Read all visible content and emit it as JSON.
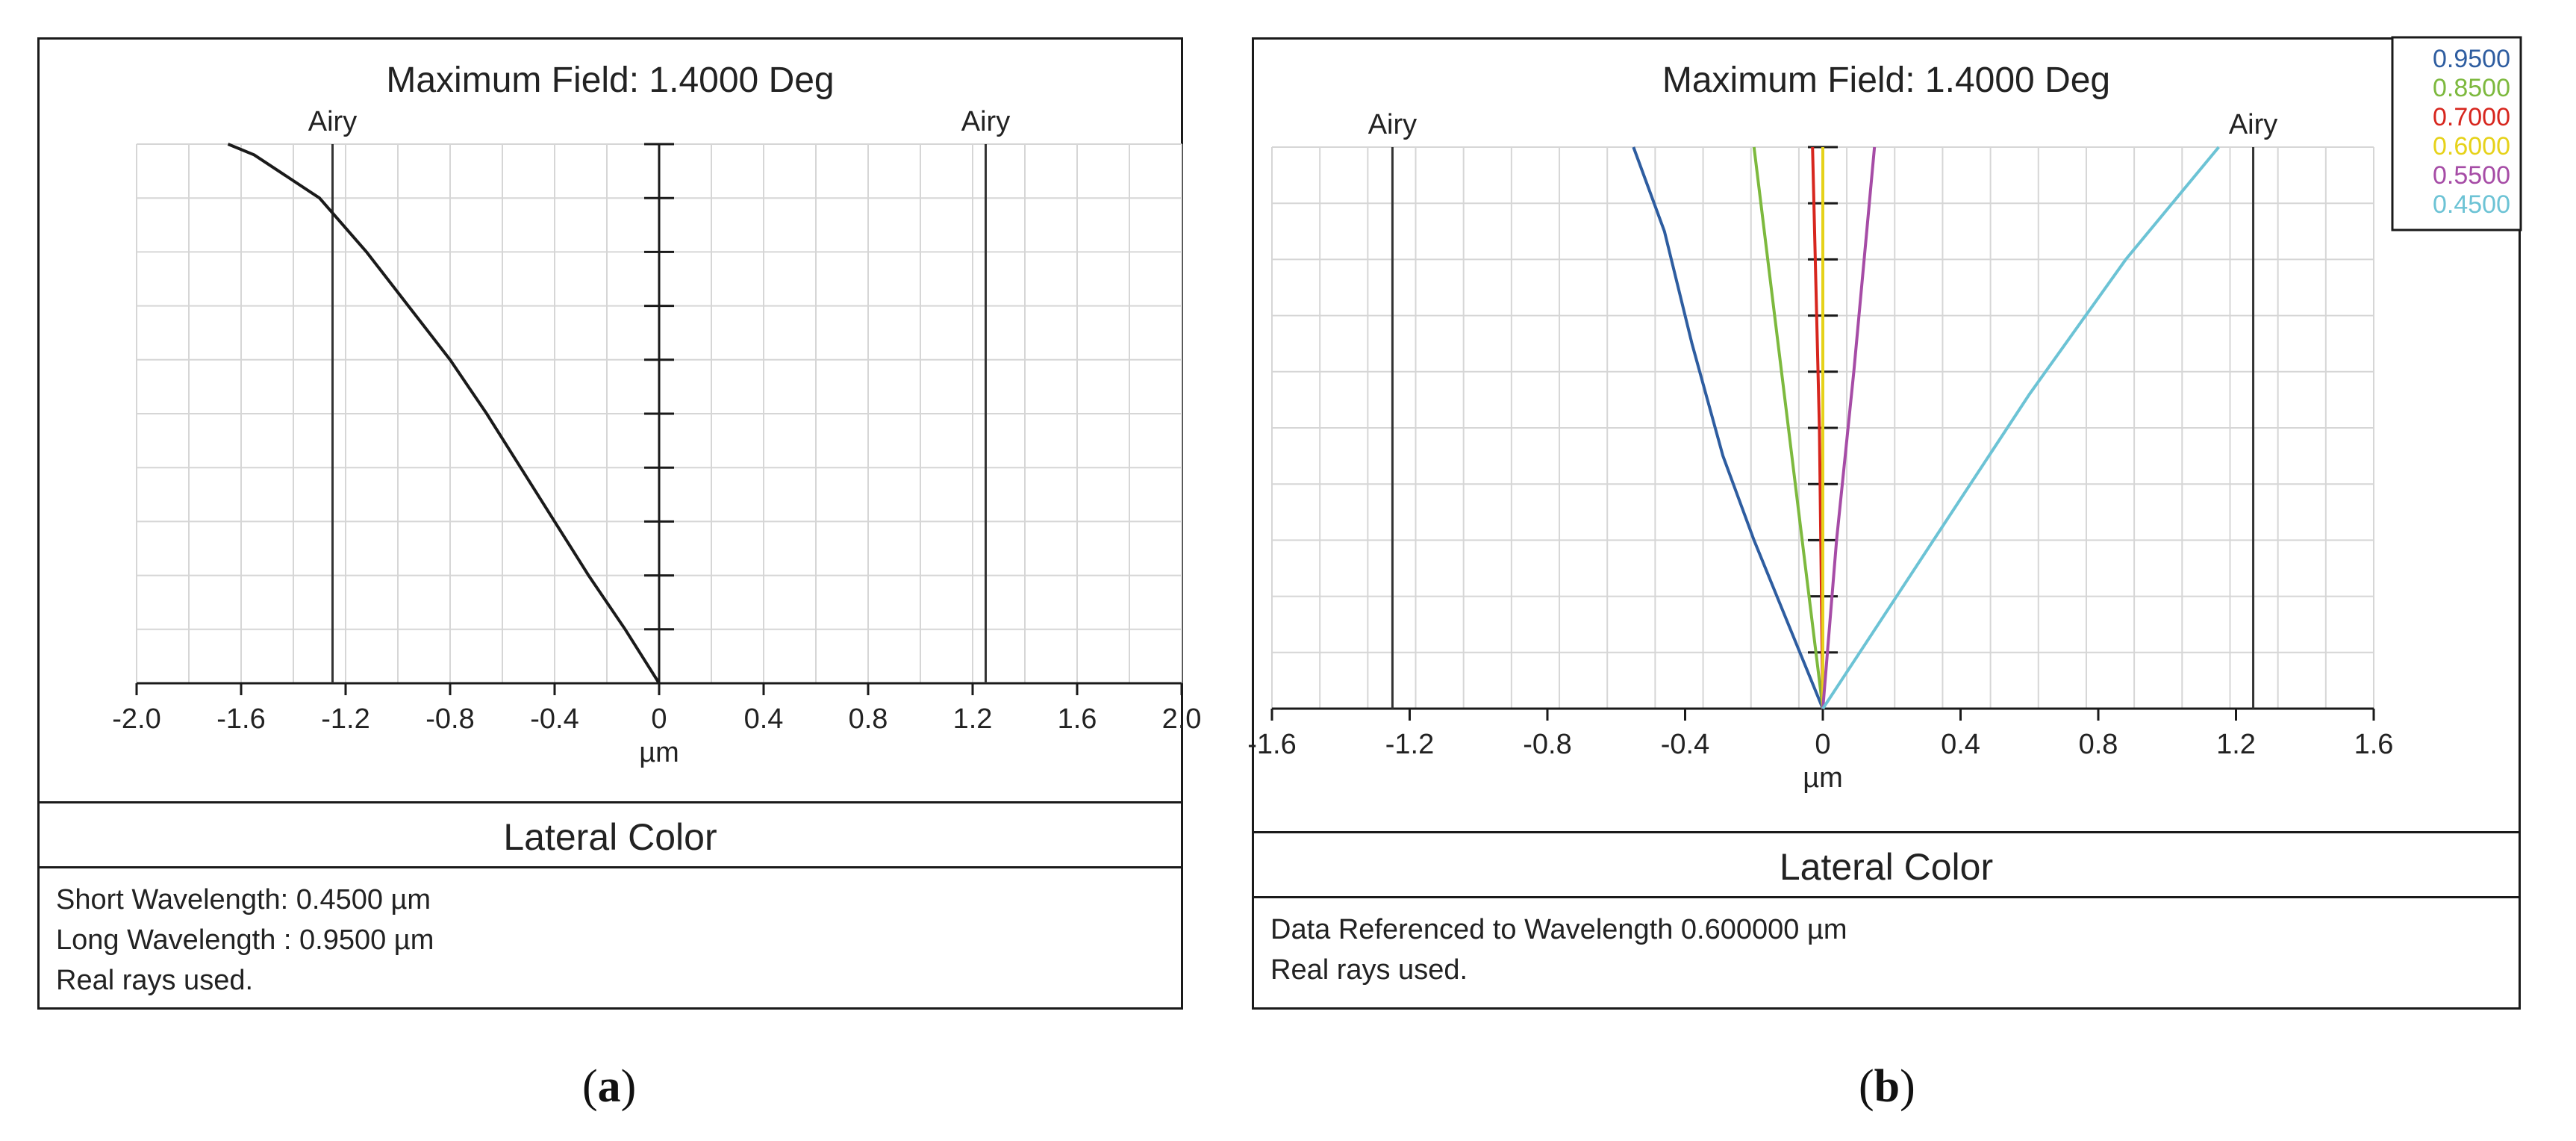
{
  "chart_data": [
    {
      "type": "line",
      "panel_label": "a",
      "title": "Maximum Field: 1.4000 Deg",
      "xlabel": "µm",
      "xlim": [
        -2.0,
        2.0
      ],
      "ylim": [
        0,
        1
      ],
      "x_ticks": [
        "-2.0",
        "-1.6",
        "-1.2",
        "-0.8",
        "-0.4",
        "0",
        "0.4",
        "0.8",
        "1.2",
        "1.6",
        "2.0"
      ],
      "grid": true,
      "airy_lines": [
        {
          "x": -1.25,
          "label": "Airy"
        },
        {
          "x": 1.25,
          "label": "Airy"
        }
      ],
      "series": [
        {
          "name": "lateral color",
          "color": "#1a1a1a",
          "points": [
            [
              0,
              0
            ],
            [
              -0.13,
              0.1
            ],
            [
              -0.27,
              0.2
            ],
            [
              -0.4,
              0.3
            ],
            [
              -0.53,
              0.4
            ],
            [
              -0.66,
              0.5
            ],
            [
              -0.8,
              0.6
            ],
            [
              -0.96,
              0.7
            ],
            [
              -1.12,
              0.8
            ],
            [
              -1.3,
              0.9
            ],
            [
              -1.55,
              0.98
            ],
            [
              -1.65,
              1.0
            ]
          ]
        }
      ],
      "caption_title": "Lateral Color",
      "notes": [
        "Short Wavelength: 0.4500 µm",
        "Long Wavelength : 0.9500 µm",
        "Real rays used."
      ]
    },
    {
      "type": "line",
      "panel_label": "b",
      "title": "Maximum Field: 1.4000 Deg",
      "xlabel": "µm",
      "xlim": [
        -1.6,
        1.6
      ],
      "ylim": [
        0,
        1
      ],
      "x_ticks": [
        "-1.6",
        "-1.2",
        "-0.8",
        "-0.4",
        "0",
        "0.4",
        "0.8",
        "1.2",
        "1.6"
      ],
      "grid": true,
      "airy_lines": [
        {
          "x": -1.25,
          "label": "Airy"
        },
        {
          "x": 1.25,
          "label": "Airy"
        }
      ],
      "legend": {
        "position": "top-right",
        "labels": [
          "0.9500",
          "0.8500",
          "0.7000",
          "0.6000",
          "0.5500",
          "0.4500"
        ]
      },
      "series": [
        {
          "name": "0.9500",
          "color": "#2e5da0",
          "points": [
            [
              0,
              0
            ],
            [
              -0.1,
              0.15
            ],
            [
              -0.2,
              0.3
            ],
            [
              -0.29,
              0.45
            ],
            [
              -0.38,
              0.65
            ],
            [
              -0.46,
              0.85
            ],
            [
              -0.55,
              1.0
            ]
          ]
        },
        {
          "name": "0.8500",
          "color": "#7db93e",
          "points": [
            [
              0,
              0
            ],
            [
              -0.05,
              0.25
            ],
            [
              -0.1,
              0.5
            ],
            [
              -0.15,
              0.75
            ],
            [
              -0.2,
              1.0
            ]
          ]
        },
        {
          "name": "0.7000",
          "color": "#d7261e",
          "points": [
            [
              0,
              0
            ],
            [
              -0.01,
              0.5
            ],
            [
              -0.03,
              1.0
            ]
          ]
        },
        {
          "name": "0.6000",
          "color": "#e6d21a",
          "points": [
            [
              0,
              0
            ],
            [
              0,
              1.0
            ]
          ]
        },
        {
          "name": "0.5500",
          "color": "#a64ca6",
          "points": [
            [
              0,
              0
            ],
            [
              0.04,
              0.3
            ],
            [
              0.09,
              0.6
            ],
            [
              0.15,
              1.0
            ]
          ]
        },
        {
          "name": "0.4500",
          "color": "#6cc3d5",
          "points": [
            [
              0,
              0
            ],
            [
              0.3,
              0.28
            ],
            [
              0.6,
              0.56
            ],
            [
              0.88,
              0.8
            ],
            [
              1.15,
              1.0
            ]
          ]
        }
      ],
      "caption_title": "Lateral Color",
      "notes": [
        "Data Referenced to Wavelength 0.600000 µm",
        "Real rays used."
      ]
    }
  ]
}
